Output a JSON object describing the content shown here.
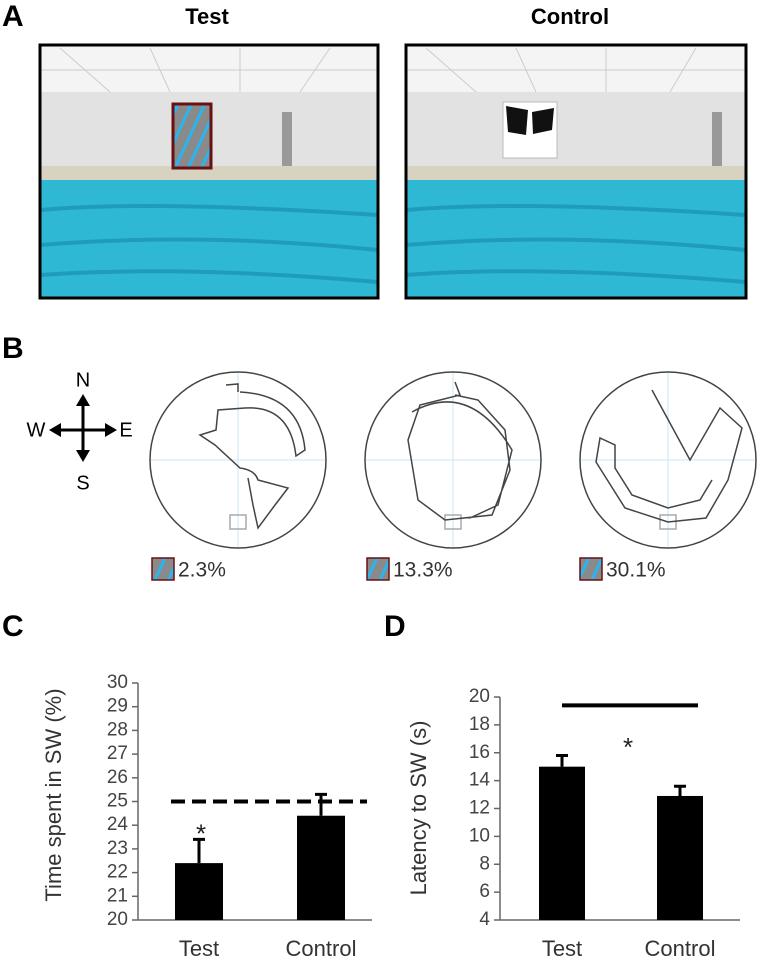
{
  "panel_labels": [
    "A",
    "B",
    "C",
    "D"
  ],
  "panel_a": {
    "titles": [
      "Test",
      "Control"
    ]
  },
  "panel_b": {
    "compass": {
      "north": "N",
      "east": "E",
      "south": "S",
      "west": "W"
    },
    "percentages": [
      "2.3%",
      "13.3%",
      "30.1%"
    ]
  },
  "chart_data": [
    {
      "type": "bar",
      "ylabel": "Time spent in SW (%)",
      "categories": [
        "Test",
        "Control"
      ],
      "values": [
        22.4,
        24.4
      ],
      "errors": [
        1.0,
        0.9
      ],
      "color": "#000000",
      "ylim": [
        20,
        30
      ],
      "yticks": [
        20,
        21,
        22,
        23,
        24,
        25,
        26,
        27,
        28,
        29,
        30
      ],
      "reference_line": 25,
      "annotations": [
        {
          "text": "*",
          "category": 0
        }
      ]
    },
    {
      "type": "bar",
      "ylabel": "Latency to SW (s)",
      "categories": [
        "Test",
        "Control"
      ],
      "values": [
        15.0,
        12.9
      ],
      "errors": [
        0.8,
        0.7
      ],
      "color": "#000000",
      "ylim": [
        4,
        20
      ],
      "yticks": [
        4,
        6,
        8,
        10,
        12,
        14,
        16,
        18,
        20
      ],
      "significance_line": 19.4,
      "annotations": [
        {
          "text": "*"
        }
      ]
    }
  ]
}
